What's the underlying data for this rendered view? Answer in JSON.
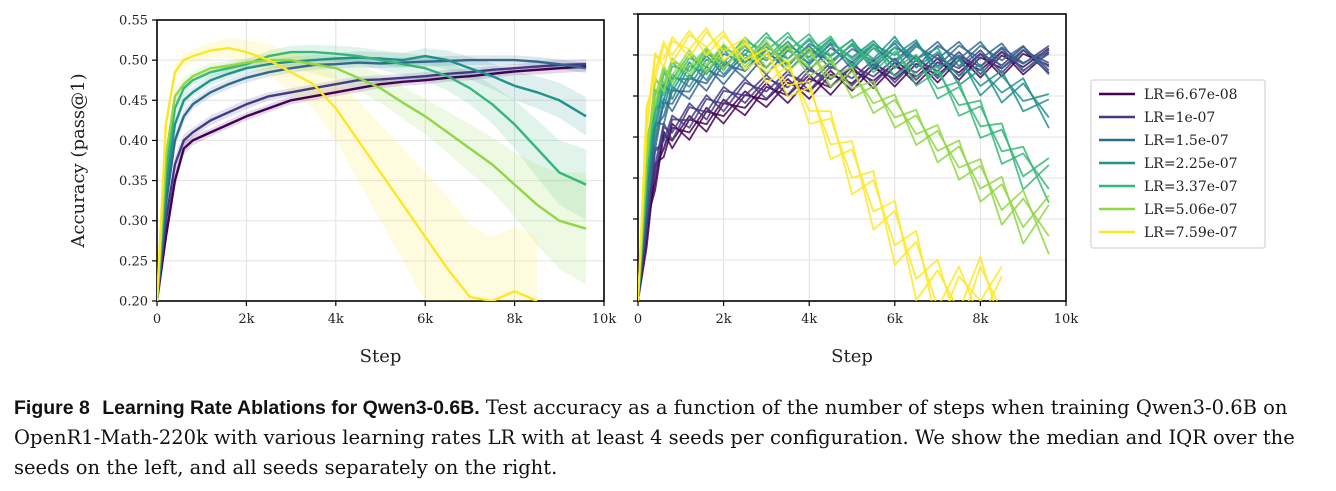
{
  "colors": {
    "lr_6_67e_08": "#440154",
    "lr_1e_07": "#443983",
    "lr_1_5e_07": "#31688e",
    "lr_2_25e_07": "#21918c",
    "lr_3_37e_07": "#35b779",
    "lr_5_06e_07": "#8fd744",
    "lr_7_59e_07": "#fde725"
  },
  "chart_data": [
    {
      "type": "line",
      "panel": "left",
      "description_of_bands": "median line with IQR shaded band",
      "xlabel": "Step",
      "ylabel": "Accuracy (pass@1)",
      "xlim": [
        0,
        10000
      ],
      "ylim": [
        0.2,
        0.55
      ],
      "x_ticks": [
        "0",
        "2k",
        "4k",
        "6k",
        "8k",
        "10k"
      ],
      "y_ticks": [
        "0.20",
        "0.25",
        "0.30",
        "0.35",
        "0.40",
        "0.45",
        "0.50",
        "0.55"
      ],
      "grid": true,
      "series": [
        {
          "name": "LR=6.67e-08",
          "color": "#440154",
          "x": [
            0,
            200,
            400,
            600,
            800,
            1200,
            1600,
            2000,
            2500,
            3000,
            3500,
            4000,
            4500,
            5000,
            5500,
            6000,
            6500,
            7000,
            7500,
            8000,
            8500,
            9000,
            9600
          ],
          "y": [
            0.2,
            0.28,
            0.35,
            0.39,
            0.4,
            0.41,
            0.42,
            0.43,
            0.44,
            0.45,
            0.455,
            0.46,
            0.465,
            0.47,
            0.473,
            0.475,
            0.478,
            0.48,
            0.483,
            0.486,
            0.488,
            0.49,
            0.492
          ],
          "iqr_width": [
            0,
            0.01,
            0.01,
            0.008,
            0.006,
            0.005,
            0.005,
            0.005,
            0.005,
            0.005,
            0.005,
            0.005,
            0.005,
            0.005,
            0.005,
            0.005,
            0.005,
            0.005,
            0.005,
            0.005,
            0.006,
            0.006,
            0.006
          ]
        },
        {
          "name": "LR=1e-07",
          "color": "#443983",
          "x": [
            0,
            200,
            400,
            600,
            800,
            1200,
            1600,
            2000,
            2500,
            3000,
            3500,
            4000,
            4500,
            5000,
            5500,
            6000,
            6500,
            7000,
            7500,
            8000,
            8500,
            9000,
            9600
          ],
          "y": [
            0.2,
            0.3,
            0.37,
            0.4,
            0.41,
            0.425,
            0.435,
            0.445,
            0.455,
            0.46,
            0.465,
            0.47,
            0.475,
            0.476,
            0.478,
            0.48,
            0.483,
            0.485,
            0.488,
            0.49,
            0.492,
            0.494,
            0.495
          ],
          "iqr_width": [
            0,
            0.01,
            0.01,
            0.008,
            0.006,
            0.006,
            0.006,
            0.006,
            0.005,
            0.005,
            0.005,
            0.005,
            0.005,
            0.005,
            0.005,
            0.005,
            0.005,
            0.005,
            0.005,
            0.005,
            0.006,
            0.006,
            0.006
          ]
        },
        {
          "name": "LR=1.5e-07",
          "color": "#31688e",
          "x": [
            0,
            200,
            400,
            600,
            800,
            1200,
            1600,
            2000,
            2500,
            3000,
            3500,
            4000,
            4500,
            5000,
            5500,
            6000,
            6500,
            7000,
            7500,
            8000,
            8500,
            9000,
            9600
          ],
          "y": [
            0.2,
            0.32,
            0.4,
            0.43,
            0.445,
            0.46,
            0.47,
            0.478,
            0.485,
            0.49,
            0.494,
            0.495,
            0.497,
            0.496,
            0.497,
            0.498,
            0.499,
            0.5,
            0.5,
            0.5,
            0.498,
            0.495,
            0.49
          ],
          "iqr_width": [
            0,
            0.01,
            0.01,
            0.008,
            0.006,
            0.006,
            0.006,
            0.006,
            0.006,
            0.006,
            0.006,
            0.006,
            0.006,
            0.006,
            0.006,
            0.006,
            0.006,
            0.006,
            0.006,
            0.006,
            0.006,
            0.006,
            0.006
          ]
        },
        {
          "name": "LR=2.25e-07",
          "color": "#21918c",
          "x": [
            0,
            200,
            400,
            600,
            800,
            1200,
            1600,
            2000,
            2500,
            3000,
            3500,
            4000,
            4500,
            5000,
            5500,
            6000,
            6500,
            7000,
            7500,
            8000,
            8500,
            9000,
            9600
          ],
          "y": [
            0.2,
            0.34,
            0.42,
            0.45,
            0.46,
            0.475,
            0.483,
            0.49,
            0.495,
            0.498,
            0.5,
            0.502,
            0.503,
            0.502,
            0.5,
            0.505,
            0.5,
            0.49,
            0.48,
            0.468,
            0.46,
            0.45,
            0.43
          ],
          "iqr_width": [
            0,
            0.01,
            0.01,
            0.008,
            0.006,
            0.006,
            0.006,
            0.006,
            0.006,
            0.006,
            0.007,
            0.007,
            0.008,
            0.008,
            0.009,
            0.01,
            0.012,
            0.014,
            0.016,
            0.018,
            0.02,
            0.022,
            0.024
          ]
        },
        {
          "name": "LR=3.37e-07",
          "color": "#35b779",
          "x": [
            0,
            200,
            400,
            600,
            800,
            1200,
            1600,
            2000,
            2500,
            3000,
            3500,
            4000,
            4500,
            5000,
            5500,
            6000,
            6500,
            7000,
            7500,
            8000,
            8500,
            9000,
            9600
          ],
          "y": [
            0.2,
            0.36,
            0.44,
            0.465,
            0.475,
            0.485,
            0.49,
            0.495,
            0.505,
            0.51,
            0.51,
            0.508,
            0.505,
            0.5,
            0.495,
            0.49,
            0.48,
            0.465,
            0.445,
            0.42,
            0.39,
            0.36,
            0.345
          ],
          "iqr_width": [
            0,
            0.01,
            0.01,
            0.008,
            0.006,
            0.006,
            0.006,
            0.006,
            0.007,
            0.008,
            0.009,
            0.01,
            0.011,
            0.012,
            0.014,
            0.016,
            0.018,
            0.02,
            0.024,
            0.03,
            0.036,
            0.04,
            0.044
          ]
        },
        {
          "name": "LR=5.06e-07",
          "color": "#8fd744",
          "x": [
            0,
            200,
            400,
            600,
            800,
            1200,
            1600,
            2000,
            2500,
            3000,
            3500,
            4000,
            4500,
            5000,
            5500,
            6000,
            6500,
            7000,
            7500,
            8000,
            8500,
            9000,
            9600
          ],
          "y": [
            0.2,
            0.38,
            0.455,
            0.47,
            0.48,
            0.49,
            0.493,
            0.497,
            0.5,
            0.5,
            0.495,
            0.49,
            0.478,
            0.465,
            0.447,
            0.43,
            0.41,
            0.39,
            0.37,
            0.345,
            0.32,
            0.3,
            0.29
          ],
          "iqr_width": [
            0,
            0.01,
            0.01,
            0.008,
            0.006,
            0.006,
            0.006,
            0.006,
            0.008,
            0.01,
            0.012,
            0.014,
            0.016,
            0.018,
            0.02,
            0.022,
            0.026,
            0.03,
            0.034,
            0.04,
            0.05,
            0.06,
            0.07
          ]
        },
        {
          "name": "LR=7.59e-07",
          "color": "#fde725",
          "x": [
            0,
            200,
            400,
            600,
            800,
            1200,
            1600,
            2000,
            2500,
            3000,
            3500,
            4000,
            4500,
            5000,
            5500,
            6000,
            6500,
            7000,
            7500,
            8000,
            8500
          ],
          "y": [
            0.2,
            0.42,
            0.485,
            0.5,
            0.505,
            0.512,
            0.515,
            0.51,
            0.5,
            0.485,
            0.47,
            0.44,
            0.4,
            0.36,
            0.32,
            0.28,
            0.24,
            0.205,
            0.2,
            0.212,
            0.2
          ],
          "iqr_width": [
            0,
            0.01,
            0.01,
            0.008,
            0.008,
            0.01,
            0.012,
            0.015,
            0.02,
            0.025,
            0.03,
            0.04,
            0.05,
            0.06,
            0.07,
            0.08,
            0.09,
            0.09,
            0.08,
            0.08,
            0.08
          ]
        }
      ]
    },
    {
      "type": "line",
      "panel": "right",
      "description_of_lines": "all seeds plotted separately",
      "xlabel": "Step",
      "xlim": [
        0,
        10000
      ],
      "ylim": [
        0.2,
        0.55
      ],
      "x_ticks": [
        "0",
        "2k",
        "4k",
        "6k",
        "8k",
        "10k"
      ],
      "grid": true,
      "seeds_per_lr": 4,
      "seed_offsets": [
        -0.012,
        0.01,
        -0.004,
        0.014
      ],
      "legend": {
        "placement": "right",
        "entries": [
          "LR=6.67e-08",
          "LR=1e-07",
          "LR=1.5e-07",
          "LR=2.25e-07",
          "LR=3.37e-07",
          "LR=5.06e-07",
          "LR=7.59e-07"
        ]
      }
    }
  ],
  "caption": {
    "figure_label": "Figure 8",
    "figure_title": "Learning Rate Ablations for Qwen3-0.6B.",
    "body": "Test accuracy as a function of the number of steps when training Qwen3-0.6B on OpenR1-Math-220k with various learning rates LR with at least 4 seeds per configuration. We show the median and IQR over the seeds on the left, and all seeds separately on the right."
  }
}
